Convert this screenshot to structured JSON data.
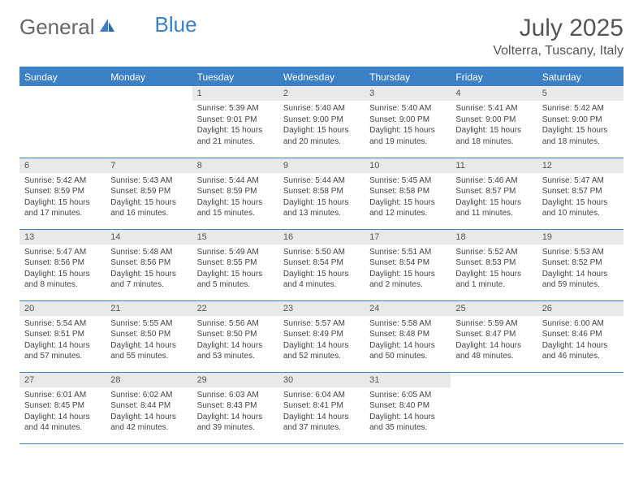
{
  "logo": {
    "text1": "General",
    "text2": "Blue"
  },
  "title": "July 2025",
  "location": "Volterra, Tuscany, Italy",
  "colors": {
    "accent": "#3b7fc4",
    "header_bg": "#3b7fc4",
    "header_text": "#ffffff",
    "daynum_bg": "#e9e9e9",
    "text": "#444444",
    "background": "#ffffff"
  },
  "weekdays": [
    "Sunday",
    "Monday",
    "Tuesday",
    "Wednesday",
    "Thursday",
    "Friday",
    "Saturday"
  ],
  "weeks": [
    [
      null,
      null,
      {
        "n": "1",
        "sr": "Sunrise: 5:39 AM",
        "ss": "Sunset: 9:01 PM",
        "dl1": "Daylight: 15 hours",
        "dl2": "and 21 minutes."
      },
      {
        "n": "2",
        "sr": "Sunrise: 5:40 AM",
        "ss": "Sunset: 9:00 PM",
        "dl1": "Daylight: 15 hours",
        "dl2": "and 20 minutes."
      },
      {
        "n": "3",
        "sr": "Sunrise: 5:40 AM",
        "ss": "Sunset: 9:00 PM",
        "dl1": "Daylight: 15 hours",
        "dl2": "and 19 minutes."
      },
      {
        "n": "4",
        "sr": "Sunrise: 5:41 AM",
        "ss": "Sunset: 9:00 PM",
        "dl1": "Daylight: 15 hours",
        "dl2": "and 18 minutes."
      },
      {
        "n": "5",
        "sr": "Sunrise: 5:42 AM",
        "ss": "Sunset: 9:00 PM",
        "dl1": "Daylight: 15 hours",
        "dl2": "and 18 minutes."
      }
    ],
    [
      {
        "n": "6",
        "sr": "Sunrise: 5:42 AM",
        "ss": "Sunset: 8:59 PM",
        "dl1": "Daylight: 15 hours",
        "dl2": "and 17 minutes."
      },
      {
        "n": "7",
        "sr": "Sunrise: 5:43 AM",
        "ss": "Sunset: 8:59 PM",
        "dl1": "Daylight: 15 hours",
        "dl2": "and 16 minutes."
      },
      {
        "n": "8",
        "sr": "Sunrise: 5:44 AM",
        "ss": "Sunset: 8:59 PM",
        "dl1": "Daylight: 15 hours",
        "dl2": "and 15 minutes."
      },
      {
        "n": "9",
        "sr": "Sunrise: 5:44 AM",
        "ss": "Sunset: 8:58 PM",
        "dl1": "Daylight: 15 hours",
        "dl2": "and 13 minutes."
      },
      {
        "n": "10",
        "sr": "Sunrise: 5:45 AM",
        "ss": "Sunset: 8:58 PM",
        "dl1": "Daylight: 15 hours",
        "dl2": "and 12 minutes."
      },
      {
        "n": "11",
        "sr": "Sunrise: 5:46 AM",
        "ss": "Sunset: 8:57 PM",
        "dl1": "Daylight: 15 hours",
        "dl2": "and 11 minutes."
      },
      {
        "n": "12",
        "sr": "Sunrise: 5:47 AM",
        "ss": "Sunset: 8:57 PM",
        "dl1": "Daylight: 15 hours",
        "dl2": "and 10 minutes."
      }
    ],
    [
      {
        "n": "13",
        "sr": "Sunrise: 5:47 AM",
        "ss": "Sunset: 8:56 PM",
        "dl1": "Daylight: 15 hours",
        "dl2": "and 8 minutes."
      },
      {
        "n": "14",
        "sr": "Sunrise: 5:48 AM",
        "ss": "Sunset: 8:56 PM",
        "dl1": "Daylight: 15 hours",
        "dl2": "and 7 minutes."
      },
      {
        "n": "15",
        "sr": "Sunrise: 5:49 AM",
        "ss": "Sunset: 8:55 PM",
        "dl1": "Daylight: 15 hours",
        "dl2": "and 5 minutes."
      },
      {
        "n": "16",
        "sr": "Sunrise: 5:50 AM",
        "ss": "Sunset: 8:54 PM",
        "dl1": "Daylight: 15 hours",
        "dl2": "and 4 minutes."
      },
      {
        "n": "17",
        "sr": "Sunrise: 5:51 AM",
        "ss": "Sunset: 8:54 PM",
        "dl1": "Daylight: 15 hours",
        "dl2": "and 2 minutes."
      },
      {
        "n": "18",
        "sr": "Sunrise: 5:52 AM",
        "ss": "Sunset: 8:53 PM",
        "dl1": "Daylight: 15 hours",
        "dl2": "and 1 minute."
      },
      {
        "n": "19",
        "sr": "Sunrise: 5:53 AM",
        "ss": "Sunset: 8:52 PM",
        "dl1": "Daylight: 14 hours",
        "dl2": "and 59 minutes."
      }
    ],
    [
      {
        "n": "20",
        "sr": "Sunrise: 5:54 AM",
        "ss": "Sunset: 8:51 PM",
        "dl1": "Daylight: 14 hours",
        "dl2": "and 57 minutes."
      },
      {
        "n": "21",
        "sr": "Sunrise: 5:55 AM",
        "ss": "Sunset: 8:50 PM",
        "dl1": "Daylight: 14 hours",
        "dl2": "and 55 minutes."
      },
      {
        "n": "22",
        "sr": "Sunrise: 5:56 AM",
        "ss": "Sunset: 8:50 PM",
        "dl1": "Daylight: 14 hours",
        "dl2": "and 53 minutes."
      },
      {
        "n": "23",
        "sr": "Sunrise: 5:57 AM",
        "ss": "Sunset: 8:49 PM",
        "dl1": "Daylight: 14 hours",
        "dl2": "and 52 minutes."
      },
      {
        "n": "24",
        "sr": "Sunrise: 5:58 AM",
        "ss": "Sunset: 8:48 PM",
        "dl1": "Daylight: 14 hours",
        "dl2": "and 50 minutes."
      },
      {
        "n": "25",
        "sr": "Sunrise: 5:59 AM",
        "ss": "Sunset: 8:47 PM",
        "dl1": "Daylight: 14 hours",
        "dl2": "and 48 minutes."
      },
      {
        "n": "26",
        "sr": "Sunrise: 6:00 AM",
        "ss": "Sunset: 8:46 PM",
        "dl1": "Daylight: 14 hours",
        "dl2": "and 46 minutes."
      }
    ],
    [
      {
        "n": "27",
        "sr": "Sunrise: 6:01 AM",
        "ss": "Sunset: 8:45 PM",
        "dl1": "Daylight: 14 hours",
        "dl2": "and 44 minutes."
      },
      {
        "n": "28",
        "sr": "Sunrise: 6:02 AM",
        "ss": "Sunset: 8:44 PM",
        "dl1": "Daylight: 14 hours",
        "dl2": "and 42 minutes."
      },
      {
        "n": "29",
        "sr": "Sunrise: 6:03 AM",
        "ss": "Sunset: 8:43 PM",
        "dl1": "Daylight: 14 hours",
        "dl2": "and 39 minutes."
      },
      {
        "n": "30",
        "sr": "Sunrise: 6:04 AM",
        "ss": "Sunset: 8:41 PM",
        "dl1": "Daylight: 14 hours",
        "dl2": "and 37 minutes."
      },
      {
        "n": "31",
        "sr": "Sunrise: 6:05 AM",
        "ss": "Sunset: 8:40 PM",
        "dl1": "Daylight: 14 hours",
        "dl2": "and 35 minutes."
      },
      null,
      null
    ]
  ]
}
